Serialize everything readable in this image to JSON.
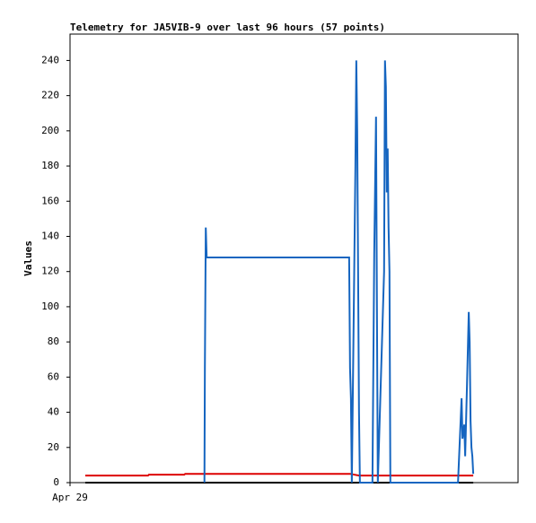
{
  "chart_data": {
    "type": "line",
    "title": "Telemetry for JA5VIB-9 over last 96 hours (57 points)",
    "y_label": "Values",
    "xlim": [
      0,
      100
    ],
    "xticks": [
      {
        "value": 0,
        "label": "Apr 29"
      }
    ],
    "ylim": [
      0,
      255
    ],
    "yticks": [
      0,
      20,
      40,
      60,
      80,
      100,
      120,
      140,
      160,
      180,
      200,
      220,
      240
    ],
    "series": [
      {
        "color": "#000000",
        "x": [
          3.4,
          90.0
        ],
        "values": [
          0,
          0
        ]
      },
      {
        "color": "#dd0000",
        "x": [
          3.4,
          17.4,
          17.6,
          25.5,
          25.7,
          62.5,
          64.5,
          90.0
        ],
        "values": [
          4,
          4,
          4.5,
          4.5,
          5,
          5,
          4,
          4
        ]
      },
      {
        "color": "#1565c0",
        "x": [
          30.0,
          30.1,
          30.3,
          30.5,
          62.3,
          62.5,
          62.7,
          62.9,
          63.7,
          63.9,
          64.1,
          64.3,
          64.5,
          64.7,
          67.5,
          67.9,
          68.3,
          68.5,
          68.7,
          70.1,
          70.3,
          70.5,
          70.7,
          70.9,
          71.1,
          71.3,
          71.5,
          86.6,
          87.4,
          87.6,
          88.0,
          88.2,
          88.6,
          89.0,
          89.2,
          89.4,
          89.6,
          89.8,
          90.0
        ],
        "values": [
          0,
          65,
          145,
          128,
          128,
          65,
          48,
          0,
          180,
          240,
          200,
          120,
          40,
          0,
          0,
          130,
          208,
          100,
          0,
          120,
          240,
          225,
          165,
          190,
          145,
          120,
          0,
          0,
          48,
          25,
          33,
          15,
          55,
          97,
          80,
          35,
          20,
          15,
          5
        ]
      }
    ]
  }
}
